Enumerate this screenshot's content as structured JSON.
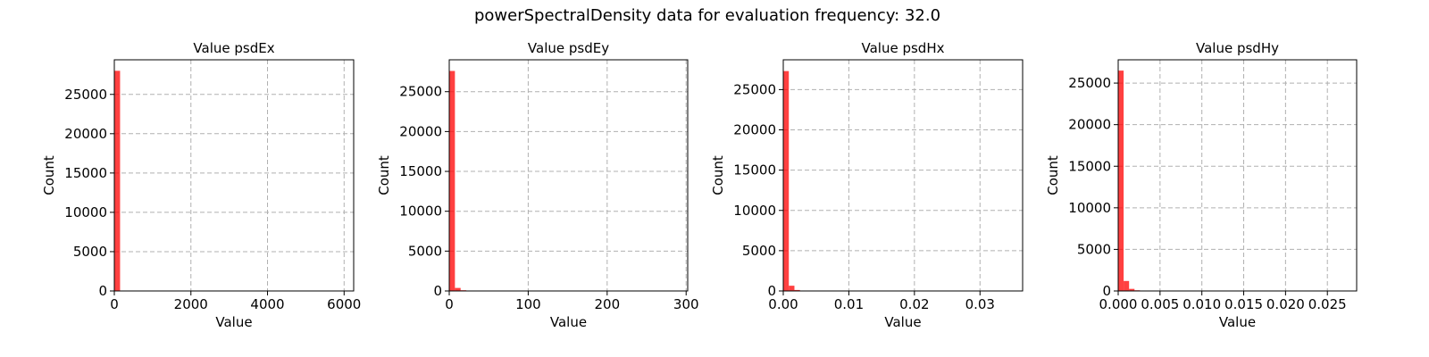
{
  "figure": {
    "title": "powerSpectralDensity data for evaluation frequency: 32.0"
  },
  "chart_data": [
    {
      "type": "bar",
      "title": "Value psdEx",
      "xlabel": "Value",
      "ylabel": "Count",
      "xlim": [
        0,
        6250
      ],
      "ylim": [
        0,
        29400
      ],
      "xticks": [
        0,
        2000,
        4000,
        6000
      ],
      "xtick_labels": [
        "0",
        "2000",
        "4000",
        "6000"
      ],
      "yticks": [
        0,
        5000,
        10000,
        15000,
        20000,
        25000
      ],
      "ytick_labels": [
        "0",
        "5000",
        "10000",
        "15000",
        "20000",
        "25000"
      ],
      "grid": true,
      "color": "#ff0000",
      "bin_width": 150,
      "bins": [
        {
          "x0": 0,
          "count": 28000
        }
      ]
    },
    {
      "type": "bar",
      "title": "Value psdEy",
      "xlabel": "Value",
      "ylabel": "Count",
      "xlim": [
        0,
        302
      ],
      "ylim": [
        0,
        29000
      ],
      "xticks": [
        0,
        100,
        200,
        300
      ],
      "xtick_labels": [
        "0",
        "100",
        "200",
        "300"
      ],
      "yticks": [
        0,
        5000,
        10000,
        15000,
        20000,
        25000
      ],
      "ytick_labels": [
        "0",
        "5000",
        "10000",
        "15000",
        "20000",
        "25000"
      ],
      "grid": true,
      "color": "#ff0000",
      "bin_width": 7.2,
      "bins": [
        {
          "x0": 0,
          "count": 27600
        },
        {
          "x0": 7.2,
          "count": 380
        },
        {
          "x0": 14.4,
          "count": 90
        },
        {
          "x0": 21.6,
          "count": 30
        }
      ]
    },
    {
      "type": "bar",
      "title": "Value psdHx",
      "xlabel": "Value",
      "ylabel": "Count",
      "xlim": [
        0,
        0.0365
      ],
      "ylim": [
        0,
        28700
      ],
      "xticks": [
        0,
        0.01,
        0.02,
        0.03
      ],
      "xtick_labels": [
        "0.00",
        "0.01",
        "0.02",
        "0.03"
      ],
      "yticks": [
        0,
        5000,
        10000,
        15000,
        20000,
        25000
      ],
      "ytick_labels": [
        "0",
        "5000",
        "10000",
        "15000",
        "20000",
        "25000"
      ],
      "grid": true,
      "color": "#ff0000",
      "bin_width": 0.00085,
      "bins": [
        {
          "x0": 0,
          "count": 27300
        },
        {
          "x0": 0.00085,
          "count": 650
        },
        {
          "x0": 0.0017,
          "count": 120
        },
        {
          "x0": 0.00255,
          "count": 40
        }
      ]
    },
    {
      "type": "bar",
      "title": "Value psdHy",
      "xlabel": "Value",
      "ylabel": "Count",
      "xlim": [
        0,
        0.0285
      ],
      "ylim": [
        0,
        27800
      ],
      "xticks": [
        0,
        0.005,
        0.01,
        0.015,
        0.02,
        0.025
      ],
      "xtick_labels": [
        "0.000",
        "0.005",
        "0.010",
        "0.015",
        "0.020",
        "0.025"
      ],
      "yticks": [
        0,
        5000,
        10000,
        15000,
        20000,
        25000
      ],
      "ytick_labels": [
        "0",
        "5000",
        "10000",
        "15000",
        "20000",
        "25000"
      ],
      "grid": true,
      "color": "#ff0000",
      "bin_width": 0.00065,
      "bins": [
        {
          "x0": 0,
          "count": 26500
        },
        {
          "x0": 0.00065,
          "count": 1200
        },
        {
          "x0": 0.0013,
          "count": 250
        },
        {
          "x0": 0.00195,
          "count": 80
        }
      ]
    }
  ]
}
